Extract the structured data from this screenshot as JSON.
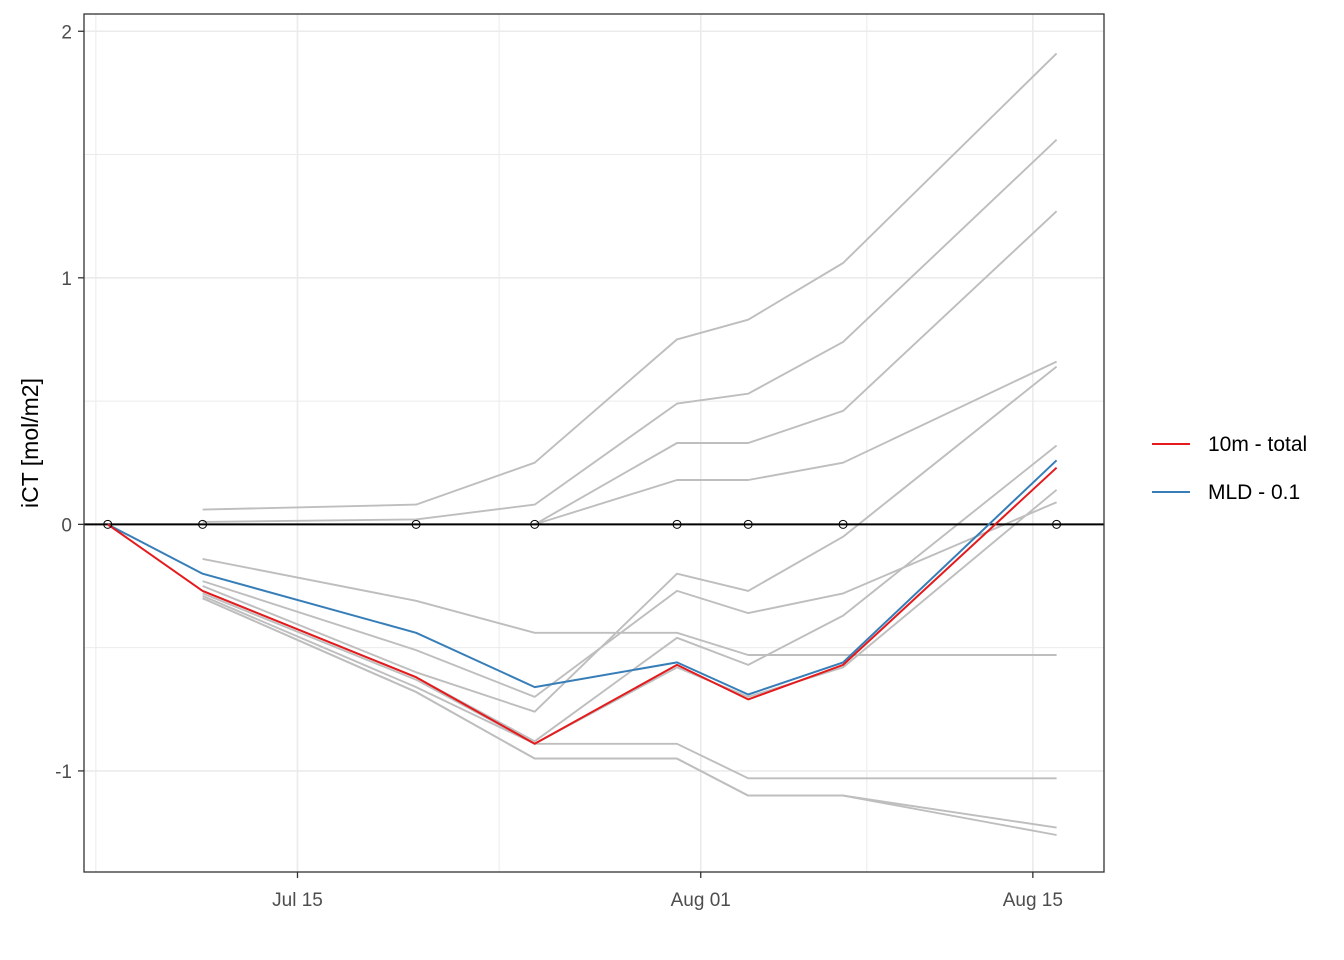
{
  "chart_data": {
    "type": "line",
    "title": "",
    "xlabel": "",
    "ylabel": "iCT [mol/m2]",
    "grid": true,
    "legend_position": "right",
    "x_ticks": [
      {
        "date": "2021-07-15",
        "label": "Jul 15"
      },
      {
        "date": "2021-08-01",
        "label": "Aug 01"
      },
      {
        "date": "2021-08-15",
        "label": "Aug 15"
      }
    ],
    "xlim": [
      "2021-07-06",
      "2021-08-18"
    ],
    "y_ticks": [
      -1,
      0,
      1,
      2
    ],
    "ylim": [
      -1.41,
      2.07
    ],
    "colors": {
      "background_lines": "#bebebe",
      "ten_m_total": "#e41a1c",
      "mld": "#377eb8",
      "zero_line": "#000000",
      "grid": "#ebebeb"
    },
    "zero_points": {
      "x": [
        "2021-07-07",
        "2021-07-11",
        "2021-07-20",
        "2021-07-25",
        "2021-07-31",
        "2021-08-03",
        "2021-08-07",
        "2021-08-16"
      ],
      "y": [
        0,
        0,
        0,
        0,
        0,
        0,
        0,
        0
      ]
    },
    "background_series": [
      {
        "x": [
          "2021-07-11",
          "2021-07-20",
          "2021-07-25",
          "2021-07-31",
          "2021-08-03",
          "2021-08-07",
          "2021-08-16"
        ],
        "values": [
          0.06,
          0.08,
          0.25,
          0.75,
          0.83,
          1.06,
          1.91
        ]
      },
      {
        "x": [
          "2021-07-11",
          "2021-07-20",
          "2021-07-25",
          "2021-07-31",
          "2021-08-03",
          "2021-08-07",
          "2021-08-16"
        ],
        "values": [
          0.01,
          0.02,
          0.08,
          0.49,
          0.53,
          0.74,
          1.56
        ]
      },
      {
        "x": [
          "2021-07-25",
          "2021-07-31",
          "2021-08-03",
          "2021-08-07",
          "2021-08-16"
        ],
        "values": [
          0.0,
          0.33,
          0.33,
          0.46,
          1.27
        ]
      },
      {
        "x": [
          "2021-07-25",
          "2021-07-31",
          "2021-08-03",
          "2021-08-07",
          "2021-08-16"
        ],
        "values": [
          0.0,
          0.18,
          0.18,
          0.25,
          0.66
        ]
      },
      {
        "x": [
          "2021-07-11",
          "2021-07-20",
          "2021-07-25",
          "2021-07-31",
          "2021-08-03",
          "2021-08-07",
          "2021-08-16"
        ],
        "values": [
          -0.14,
          -0.31,
          -0.44,
          -0.44,
          -0.53,
          -0.53,
          -0.53
        ]
      },
      {
        "x": [
          "2021-07-11",
          "2021-07-20",
          "2021-07-25",
          "2021-07-31",
          "2021-08-03",
          "2021-08-07",
          "2021-08-16"
        ],
        "values": [
          -0.23,
          -0.51,
          -0.7,
          -0.27,
          -0.36,
          -0.28,
          0.09
        ]
      },
      {
        "x": [
          "2021-07-11",
          "2021-07-20",
          "2021-07-25",
          "2021-07-31",
          "2021-08-03",
          "2021-08-07",
          "2021-08-16"
        ],
        "values": [
          -0.25,
          -0.6,
          -0.76,
          -0.2,
          -0.27,
          -0.05,
          0.64
        ]
      },
      {
        "x": [
          "2021-07-11",
          "2021-07-20",
          "2021-07-25",
          "2021-07-31",
          "2021-08-03",
          "2021-08-07",
          "2021-08-16"
        ],
        "values": [
          -0.27,
          -0.62,
          -0.88,
          -0.46,
          -0.57,
          -0.37,
          0.32
        ]
      },
      {
        "x": [
          "2021-07-11",
          "2021-07-20",
          "2021-07-25",
          "2021-07-31",
          "2021-08-03",
          "2021-08-07",
          "2021-08-16"
        ],
        "values": [
          -0.28,
          -0.63,
          -0.89,
          -0.58,
          -0.7,
          -0.58,
          0.14
        ]
      },
      {
        "x": [
          "2021-07-11",
          "2021-07-20",
          "2021-07-25",
          "2021-07-31",
          "2021-08-03",
          "2021-08-07",
          "2021-08-16"
        ],
        "values": [
          -0.29,
          -0.66,
          -0.89,
          -0.89,
          -1.03,
          -1.03,
          -1.03
        ]
      },
      {
        "x": [
          "2021-07-11",
          "2021-07-20",
          "2021-07-25",
          "2021-07-31",
          "2021-08-03",
          "2021-08-07",
          "2021-08-16"
        ],
        "values": [
          -0.3,
          -0.68,
          -0.95,
          -0.95,
          -1.1,
          -1.1,
          -1.23
        ]
      },
      {
        "x": [
          "2021-07-11",
          "2021-07-20",
          "2021-07-25",
          "2021-07-31",
          "2021-08-03",
          "2021-08-07",
          "2021-08-16"
        ],
        "values": [
          -0.3,
          -0.68,
          -0.95,
          -0.95,
          -1.1,
          -1.1,
          -1.26
        ]
      }
    ],
    "series": [
      {
        "name": "10m - total",
        "color": "#e41a1c",
        "x": [
          "2021-07-07",
          "2021-07-11",
          "2021-07-20",
          "2021-07-25",
          "2021-07-31",
          "2021-08-03",
          "2021-08-07",
          "2021-08-16"
        ],
        "values": [
          0,
          -0.27,
          -0.62,
          -0.89,
          -0.57,
          -0.71,
          -0.57,
          0.23
        ]
      },
      {
        "name": "MLD - 0.1",
        "color": "#377eb8",
        "x": [
          "2021-07-07",
          "2021-07-11",
          "2021-07-20",
          "2021-07-25",
          "2021-07-31",
          "2021-08-03",
          "2021-08-07",
          "2021-08-16"
        ],
        "values": [
          0,
          -0.2,
          -0.44,
          -0.66,
          -0.56,
          -0.69,
          -0.56,
          0.26
        ]
      }
    ]
  }
}
